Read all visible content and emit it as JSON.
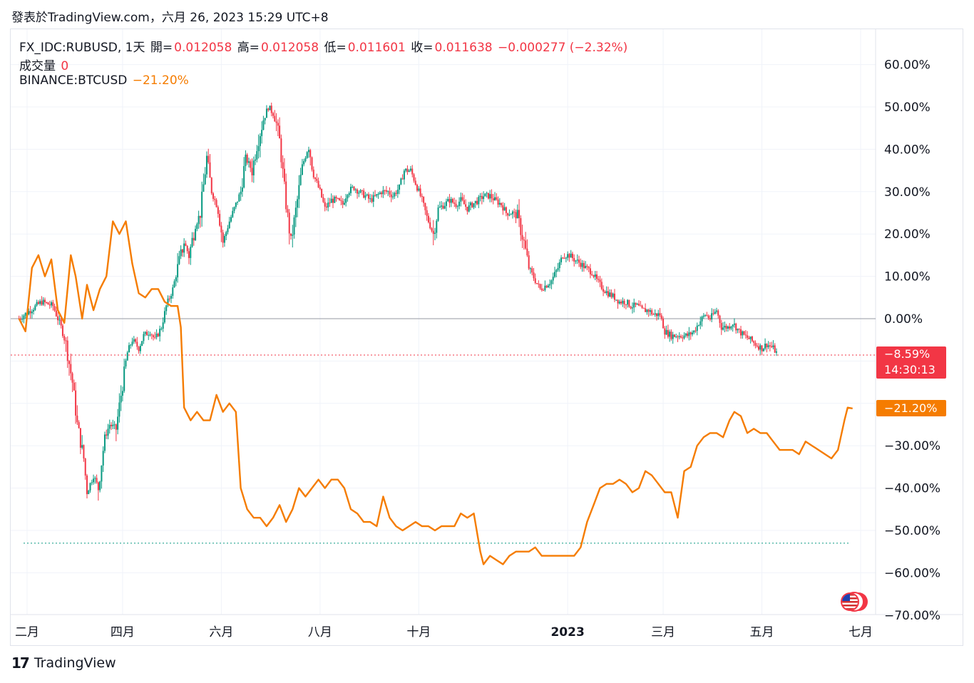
{
  "caption": "發表於TradingView.com，六月 26, 2023 15:29 UTC+8",
  "legend": {
    "symbol": "FX_IDC:RUBUSD, 1天",
    "open_label": "開=",
    "open_value": "0.012058",
    "high_label": "高=",
    "high_value": "0.012058",
    "low_label": "低=",
    "low_value": "0.011601",
    "close_label": "收=",
    "close_value": "0.011638",
    "change": "−0.000277 (−2.32%)",
    "volume_label": "成交量",
    "volume_value": "0",
    "compare_symbol": "BINANCE:BTCUSD",
    "compare_value": "−21.20%"
  },
  "price_tags": {
    "rub_pct": "−8.59%",
    "countdown": "14:30:13",
    "btc_pct": "−21.20%"
  },
  "brand": "TradingView",
  "colors": {
    "up": "#089981",
    "down": "#f23645",
    "btc": "#f57c00",
    "grid": "#f0f3fa",
    "zero_line": "#9598a1"
  },
  "chart_data": {
    "type": "line",
    "y_axis_unit": "percent",
    "ylim": [
      -70,
      65
    ],
    "y_ticks": [
      60,
      50,
      40,
      30,
      20,
      10,
      0,
      -30,
      -40,
      -50,
      -60,
      -70
    ],
    "y_tick_labels": [
      "60.00%",
      "50.00%",
      "40.00%",
      "30.00%",
      "20.00%",
      "10.00%",
      "0.00%",
      "−30.00%",
      "−40.00%",
      "−50.00%",
      "−60.00%",
      "−70.00%"
    ],
    "x_tick_labels": [
      "二月",
      "四月",
      "六月",
      "八月",
      "十月",
      "2023",
      "三月",
      "五月",
      "七月"
    ],
    "x_tick_dates": [
      "2022-02-01",
      "2022-04-01",
      "2022-06-01",
      "2022-08-01",
      "2022-10-01",
      "2023-01-01",
      "2023-03-01",
      "2023-05-01",
      "2023-07-01"
    ],
    "x_range": [
      "2022-01-26",
      "2023-07-10"
    ],
    "series": [
      {
        "name": "FX_IDC:RUBUSD",
        "style": "candles",
        "points": [
          [
            "2022-01-27",
            0
          ],
          [
            "2022-02-03",
            2
          ],
          [
            "2022-02-10",
            4
          ],
          [
            "2022-02-17",
            3
          ],
          [
            "2022-02-22",
            -2
          ],
          [
            "2022-02-25",
            -6
          ],
          [
            "2022-03-01",
            -15
          ],
          [
            "2022-03-04",
            -25
          ],
          [
            "2022-03-08",
            -33
          ],
          [
            "2022-03-10",
            -41
          ],
          [
            "2022-03-14",
            -37
          ],
          [
            "2022-03-17",
            -40
          ],
          [
            "2022-03-21",
            -28
          ],
          [
            "2022-03-24",
            -25
          ],
          [
            "2022-03-28",
            -26
          ],
          [
            "2022-03-31",
            -18
          ],
          [
            "2022-04-04",
            -8
          ],
          [
            "2022-04-07",
            -5
          ],
          [
            "2022-04-11",
            -7
          ],
          [
            "2022-04-14",
            -4
          ],
          [
            "2022-04-18",
            -3
          ],
          [
            "2022-04-21",
            -5
          ],
          [
            "2022-04-25",
            -2
          ],
          [
            "2022-04-28",
            3
          ],
          [
            "2022-05-02",
            7
          ],
          [
            "2022-05-05",
            12
          ],
          [
            "2022-05-09",
            18
          ],
          [
            "2022-05-12",
            15
          ],
          [
            "2022-05-16",
            22
          ],
          [
            "2022-05-19",
            25
          ],
          [
            "2022-05-23",
            38
          ],
          [
            "2022-05-26",
            30
          ],
          [
            "2022-05-30",
            26
          ],
          [
            "2022-06-02",
            18
          ],
          [
            "2022-06-06",
            23
          ],
          [
            "2022-06-09",
            26
          ],
          [
            "2022-06-13",
            30
          ],
          [
            "2022-06-16",
            38
          ],
          [
            "2022-06-20",
            35
          ],
          [
            "2022-06-23",
            41
          ],
          [
            "2022-06-27",
            47
          ],
          [
            "2022-06-30",
            50
          ],
          [
            "2022-07-04",
            48
          ],
          [
            "2022-07-07",
            42
          ],
          [
            "2022-07-11",
            27
          ],
          [
            "2022-07-14",
            18
          ],
          [
            "2022-07-18",
            28
          ],
          [
            "2022-07-21",
            36
          ],
          [
            "2022-07-25",
            41
          ],
          [
            "2022-07-28",
            34
          ],
          [
            "2022-08-01",
            30
          ],
          [
            "2022-08-04",
            26
          ],
          [
            "2022-08-08",
            28
          ],
          [
            "2022-08-11",
            28
          ],
          [
            "2022-08-15",
            27
          ],
          [
            "2022-08-18",
            30
          ],
          [
            "2022-08-22",
            31
          ],
          [
            "2022-08-25",
            30
          ],
          [
            "2022-08-29",
            29
          ],
          [
            "2022-09-01",
            28
          ],
          [
            "2022-09-05",
            29
          ],
          [
            "2022-09-08",
            30
          ],
          [
            "2022-09-12",
            30
          ],
          [
            "2022-09-15",
            29
          ],
          [
            "2022-09-19",
            31
          ],
          [
            "2022-09-22",
            35
          ],
          [
            "2022-09-26",
            35
          ],
          [
            "2022-09-29",
            32
          ],
          [
            "2022-10-03",
            28
          ],
          [
            "2022-10-06",
            24
          ],
          [
            "2022-10-10",
            20
          ],
          [
            "2022-10-13",
            26
          ],
          [
            "2022-10-17",
            27
          ],
          [
            "2022-10-20",
            28
          ],
          [
            "2022-10-24",
            27
          ],
          [
            "2022-10-27",
            28
          ],
          [
            "2022-10-31",
            26
          ],
          [
            "2022-11-03",
            27
          ],
          [
            "2022-11-07",
            28
          ],
          [
            "2022-11-10",
            29
          ],
          [
            "2022-11-14",
            29
          ],
          [
            "2022-11-17",
            28
          ],
          [
            "2022-11-21",
            27
          ],
          [
            "2022-11-24",
            25
          ],
          [
            "2022-11-28",
            25
          ],
          [
            "2022-12-01",
            24
          ],
          [
            "2022-12-05",
            18
          ],
          [
            "2022-12-08",
            12
          ],
          [
            "2022-12-12",
            9
          ],
          [
            "2022-12-15",
            7
          ],
          [
            "2022-12-19",
            8
          ],
          [
            "2022-12-22",
            9
          ],
          [
            "2022-12-26",
            12
          ],
          [
            "2022-12-29",
            15
          ],
          [
            "2023-01-02",
            15
          ],
          [
            "2023-01-05",
            14
          ],
          [
            "2023-01-09",
            13
          ],
          [
            "2023-01-12",
            12
          ],
          [
            "2023-01-16",
            11
          ],
          [
            "2023-01-19",
            9
          ],
          [
            "2023-01-23",
            7
          ],
          [
            "2023-01-26",
            6
          ],
          [
            "2023-01-30",
            5
          ],
          [
            "2023-02-02",
            4
          ],
          [
            "2023-02-06",
            4
          ],
          [
            "2023-02-09",
            3
          ],
          [
            "2023-02-13",
            3
          ],
          [
            "2023-02-16",
            2
          ],
          [
            "2023-02-20",
            2
          ],
          [
            "2023-02-23",
            1
          ],
          [
            "2023-02-27",
            1
          ],
          [
            "2023-03-02",
            -3
          ],
          [
            "2023-03-06",
            -4
          ],
          [
            "2023-03-09",
            -4
          ],
          [
            "2023-03-13",
            -4
          ],
          [
            "2023-03-16",
            -4
          ],
          [
            "2023-03-20",
            -3
          ],
          [
            "2023-03-23",
            -1
          ],
          [
            "2023-03-27",
            1
          ],
          [
            "2023-03-30",
            0
          ],
          [
            "2023-04-03",
            2
          ],
          [
            "2023-04-06",
            -2
          ],
          [
            "2023-04-10",
            -2
          ],
          [
            "2023-04-13",
            -1
          ],
          [
            "2023-04-17",
            -3
          ],
          [
            "2023-04-20",
            -4
          ],
          [
            "2023-04-24",
            -5
          ],
          [
            "2023-04-27",
            -6
          ],
          [
            "2023-05-01",
            -7
          ],
          [
            "2023-05-04",
            -6
          ],
          [
            "2023-05-08",
            -7
          ],
          [
            "2023-05-11",
            -8.59
          ]
        ]
      },
      {
        "name": "BINANCE:BTCUSD",
        "style": "line",
        "points": [
          [
            "2022-01-27",
            0
          ],
          [
            "2022-01-31",
            -3
          ],
          [
            "2022-02-04",
            12
          ],
          [
            "2022-02-08",
            15
          ],
          [
            "2022-02-12",
            10
          ],
          [
            "2022-02-16",
            14
          ],
          [
            "2022-02-20",
            2
          ],
          [
            "2022-02-24",
            -1
          ],
          [
            "2022-02-28",
            15
          ],
          [
            "2022-03-03",
            10
          ],
          [
            "2022-03-07",
            0
          ],
          [
            "2022-03-10",
            8
          ],
          [
            "2022-03-14",
            2
          ],
          [
            "2022-03-18",
            7
          ],
          [
            "2022-03-22",
            10
          ],
          [
            "2022-03-26",
            23
          ],
          [
            "2022-03-30",
            20
          ],
          [
            "2022-04-03",
            23
          ],
          [
            "2022-04-07",
            13
          ],
          [
            "2022-04-11",
            6
          ],
          [
            "2022-04-15",
            5
          ],
          [
            "2022-04-19",
            7
          ],
          [
            "2022-04-23",
            7
          ],
          [
            "2022-04-27",
            4
          ],
          [
            "2022-05-01",
            3
          ],
          [
            "2022-05-05",
            3
          ],
          [
            "2022-05-07",
            -2
          ],
          [
            "2022-05-09",
            -21
          ],
          [
            "2022-05-13",
            -24
          ],
          [
            "2022-05-17",
            -22
          ],
          [
            "2022-05-21",
            -24
          ],
          [
            "2022-05-25",
            -24
          ],
          [
            "2022-05-29",
            -18
          ],
          [
            "2022-06-02",
            -22
          ],
          [
            "2022-06-06",
            -20
          ],
          [
            "2022-06-10",
            -22
          ],
          [
            "2022-06-13",
            -40
          ],
          [
            "2022-06-17",
            -45
          ],
          [
            "2022-06-21",
            -47
          ],
          [
            "2022-06-25",
            -47
          ],
          [
            "2022-06-29",
            -49
          ],
          [
            "2022-07-03",
            -47
          ],
          [
            "2022-07-07",
            -44
          ],
          [
            "2022-07-11",
            -48
          ],
          [
            "2022-07-15",
            -45
          ],
          [
            "2022-07-19",
            -40
          ],
          [
            "2022-07-23",
            -42
          ],
          [
            "2022-07-27",
            -40
          ],
          [
            "2022-07-31",
            -38
          ],
          [
            "2022-08-04",
            -40
          ],
          [
            "2022-08-08",
            -38
          ],
          [
            "2022-08-12",
            -38
          ],
          [
            "2022-08-16",
            -40
          ],
          [
            "2022-08-20",
            -45
          ],
          [
            "2022-08-24",
            -46
          ],
          [
            "2022-08-28",
            -48
          ],
          [
            "2022-09-01",
            -48
          ],
          [
            "2022-09-05",
            -49
          ],
          [
            "2022-09-09",
            -42
          ],
          [
            "2022-09-13",
            -47
          ],
          [
            "2022-09-17",
            -49
          ],
          [
            "2022-09-21",
            -50
          ],
          [
            "2022-09-25",
            -49
          ],
          [
            "2022-09-29",
            -48
          ],
          [
            "2022-10-03",
            -49
          ],
          [
            "2022-10-07",
            -49
          ],
          [
            "2022-10-11",
            -50
          ],
          [
            "2022-10-15",
            -49
          ],
          [
            "2022-10-19",
            -49
          ],
          [
            "2022-10-23",
            -49
          ],
          [
            "2022-10-27",
            -46
          ],
          [
            "2022-10-31",
            -47
          ],
          [
            "2022-11-04",
            -46
          ],
          [
            "2022-11-08",
            -55
          ],
          [
            "2022-11-10",
            -58
          ],
          [
            "2022-11-14",
            -56
          ],
          [
            "2022-11-18",
            -57
          ],
          [
            "2022-11-22",
            -58
          ],
          [
            "2022-11-26",
            -56
          ],
          [
            "2022-11-30",
            -55
          ],
          [
            "2022-12-04",
            -55
          ],
          [
            "2022-12-08",
            -55
          ],
          [
            "2022-12-12",
            -54
          ],
          [
            "2022-12-16",
            -56
          ],
          [
            "2022-12-20",
            -56
          ],
          [
            "2022-12-24",
            -56
          ],
          [
            "2022-12-28",
            -56
          ],
          [
            "2023-01-01",
            -56
          ],
          [
            "2023-01-05",
            -56
          ],
          [
            "2023-01-09",
            -54
          ],
          [
            "2023-01-13",
            -48
          ],
          [
            "2023-01-17",
            -44
          ],
          [
            "2023-01-21",
            -40
          ],
          [
            "2023-01-25",
            -39
          ],
          [
            "2023-01-29",
            -39
          ],
          [
            "2023-02-02",
            -38
          ],
          [
            "2023-02-06",
            -39
          ],
          [
            "2023-02-10",
            -41
          ],
          [
            "2023-02-14",
            -40
          ],
          [
            "2023-02-18",
            -36
          ],
          [
            "2023-02-22",
            -37
          ],
          [
            "2023-02-26",
            -39
          ],
          [
            "2023-03-02",
            -41
          ],
          [
            "2023-03-06",
            -41
          ],
          [
            "2023-03-10",
            -47
          ],
          [
            "2023-03-14",
            -36
          ],
          [
            "2023-03-18",
            -35
          ],
          [
            "2023-03-22",
            -30
          ],
          [
            "2023-03-26",
            -28
          ],
          [
            "2023-03-30",
            -27
          ],
          [
            "2023-04-03",
            -27
          ],
          [
            "2023-04-07",
            -28
          ],
          [
            "2023-04-11",
            -24
          ],
          [
            "2023-04-14",
            -22
          ],
          [
            "2023-04-18",
            -23
          ],
          [
            "2023-04-22",
            -27
          ],
          [
            "2023-04-26",
            -26
          ],
          [
            "2023-04-30",
            -27
          ],
          [
            "2023-05-04",
            -27
          ],
          [
            "2023-05-08",
            -29
          ],
          [
            "2023-05-12",
            -31
          ],
          [
            "2023-05-16",
            -31
          ],
          [
            "2023-05-20",
            -31
          ],
          [
            "2023-05-24",
            -32
          ],
          [
            "2023-05-28",
            -29
          ],
          [
            "2023-06-01",
            -30
          ],
          [
            "2023-06-05",
            -31
          ],
          [
            "2023-06-09",
            -32
          ],
          [
            "2023-06-13",
            -33
          ],
          [
            "2023-06-17",
            -31
          ],
          [
            "2023-06-21",
            -24
          ],
          [
            "2023-06-23",
            -21
          ],
          [
            "2023-06-26",
            -21.2
          ]
        ]
      }
    ],
    "reference_lines": [
      {
        "value": 0,
        "style": "solid",
        "color": "#9598a1"
      },
      {
        "value": -8.59,
        "style": "dotted",
        "color": "#f23645"
      },
      {
        "value": -53,
        "style": "dotted",
        "color": "#089981"
      }
    ],
    "grid": true,
    "legend_position": "top-left"
  }
}
